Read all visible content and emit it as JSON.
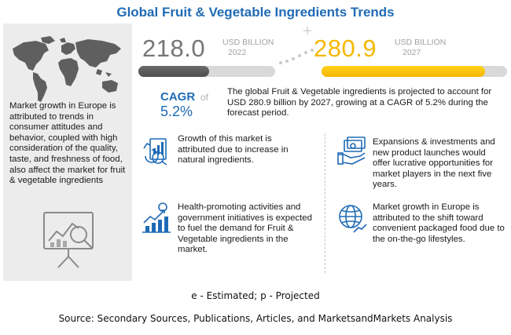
{
  "title": "Global Fruit & Vegetable Ingredients  Trends",
  "colors": {
    "accent_blue": "#1f6bb5",
    "gray_bar": "#5a5a5a",
    "gold_bar": "#f5b800",
    "panel_gray": "#ececec"
  },
  "left_panel": {
    "text": "Market growth in Europe is attributed to trends in consumer attitudes and behavior, coupled with high consideration of the quality, taste, and freshness of food, also affect the market for fruit & vegetable ingredients",
    "icons": [
      "world-map-icon",
      "analysis-board-icon"
    ]
  },
  "stats": {
    "base": {
      "value": "218.0",
      "unit": "USD BILLION",
      "year": "2022",
      "bar_fill_fraction": 0.52
    },
    "forecast": {
      "value": "280.9",
      "unit": "USD BILLION",
      "year": "2027",
      "bar_fill_fraction": 0.88
    }
  },
  "cagr": {
    "label": "CAGR",
    "of": "of",
    "value": "5.2%"
  },
  "summary": "The global  Fruit & Vegetable ingredients  is projected to account for USD 280.9 billion  by 2027, growing at a CAGR of 5.2% during the forecast period.",
  "trends": [
    {
      "icon": "growth-report-icon",
      "text": "Growth of this market is attributed due  to increase in natural ingredients."
    },
    {
      "icon": "money-hand-icon",
      "text": "Expansions & investments and new product launches would offer lucrative opportunities for market players in the next five years."
    },
    {
      "icon": "rising-chart-icon",
      "text": "Health-promoting activities and government initiatives is expected to fuel the demand for Fruit & Vegetable ingredients in the market."
    },
    {
      "icon": "globe-chart-icon",
      "text": "Market growth in Europe is attributed to the shift toward convenient packaged food due to the on-the-go lifestyles."
    }
  ],
  "footnote": "e - Estimated; p - Projected",
  "source": "Source: Secondary Sources, Publications, Articles, and MarketsandMarkets Analysis"
}
